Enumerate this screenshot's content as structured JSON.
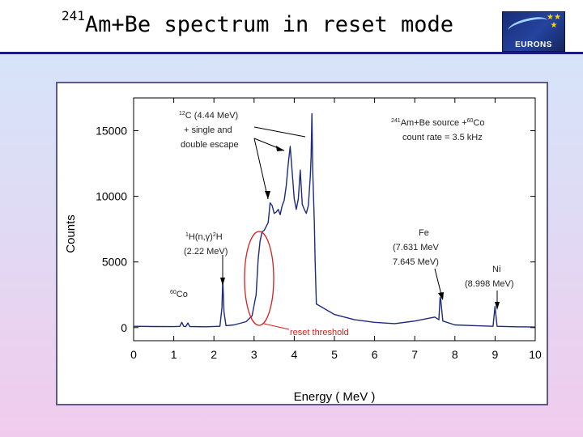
{
  "slide": {
    "title_sup": "241",
    "title_main": "Am+Be spectrum in reset mode",
    "logo_text": "EURONS"
  },
  "chart_data": {
    "type": "line",
    "xlabel": "Energy ( MeV )",
    "ylabel": "Counts",
    "xlim": [
      0,
      10
    ],
    "ylim": [
      -1000,
      17500
    ],
    "x_ticks": [
      0,
      1,
      2,
      3,
      4,
      5,
      6,
      7,
      8,
      9,
      10
    ],
    "y_ticks": [
      0,
      5000,
      10000,
      15000
    ],
    "series": [
      {
        "name": "241Am+Be spectrum",
        "color": "#1c2a80",
        "x": [
          0,
          0.5,
          1.0,
          1.15,
          1.2,
          1.25,
          1.3,
          1.35,
          1.4,
          1.8,
          2.15,
          2.2,
          2.22,
          2.25,
          2.3,
          2.5,
          2.8,
          2.95,
          3.05,
          3.1,
          3.15,
          3.2,
          3.25,
          3.3,
          3.35,
          3.4,
          3.45,
          3.5,
          3.55,
          3.6,
          3.65,
          3.7,
          3.75,
          3.8,
          3.85,
          3.9,
          3.95,
          4.0,
          4.05,
          4.1,
          4.15,
          4.2,
          4.25,
          4.3,
          4.35,
          4.4,
          4.42,
          4.44,
          4.46,
          4.5,
          4.52,
          4.55,
          5.0,
          5.5,
          6.0,
          6.5,
          7.0,
          7.5,
          7.6,
          7.631,
          7.645,
          7.7,
          8.0,
          8.5,
          8.95,
          8.998,
          9.05,
          9.5,
          10.0
        ],
        "y": [
          100,
          80,
          70,
          90,
          400,
          90,
          80,
          350,
          80,
          60,
          100,
          1500,
          3700,
          1200,
          150,
          200,
          450,
          900,
          2500,
          5200,
          6600,
          7300,
          7400,
          7700,
          8000,
          9500,
          9300,
          8700,
          8800,
          9000,
          8600,
          9300,
          9700,
          10800,
          12500,
          13800,
          11800,
          9800,
          9000,
          9800,
          12000,
          9400,
          9000,
          8700,
          9300,
          11500,
          13000,
          16300,
          12000,
          8000,
          5000,
          1800,
          1000,
          600,
          400,
          300,
          500,
          800,
          600,
          2300,
          2200,
          500,
          200,
          150,
          100,
          1600,
          100,
          60,
          40
        ]
      }
    ],
    "annotations": {
      "c12": {
        "sup": "12",
        "text": "C (4.44 MeV)",
        "line2": "+ single and",
        "line3": "double escape"
      },
      "source": {
        "sup1": "241",
        "text1": "Am+Be source +",
        "sup2": "60",
        "text2": "Co",
        "line2": "count rate = 3.5 kHz"
      },
      "h2": {
        "part1": "1",
        "part2": "H(n,γ)",
        "part3": "2",
        "part4": "H",
        "line2": "(2.22 MeV)"
      },
      "fe": {
        "line1": "Fe",
        "line2": "(7.631 MeV",
        "line3": "7.645 MeV)"
      },
      "ni": {
        "line1": "Ni",
        "line2": "(8.998 MeV)"
      },
      "co60": {
        "sup": "60",
        "text": "Co"
      },
      "reset": {
        "text": "reset threshold",
        "color": "#d62020"
      }
    }
  }
}
